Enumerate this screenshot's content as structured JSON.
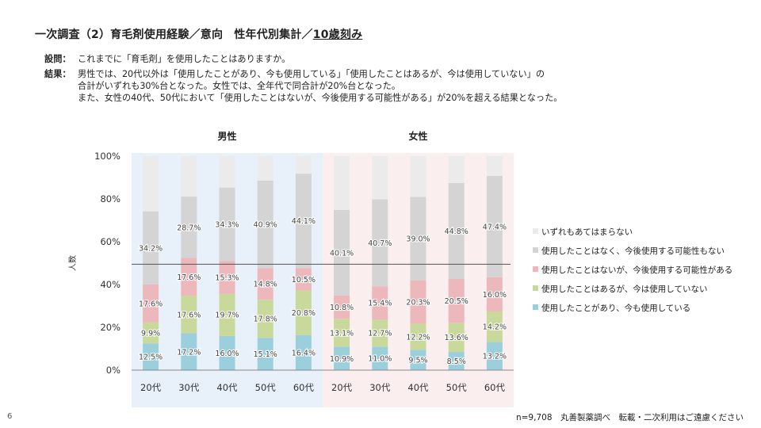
{
  "slide": {
    "title_main": "一次調査（2）育毛剤使用経験／意向　性年代別集計／",
    "title_underlined": "10歳刻み",
    "question_label": "設問：",
    "question_text": "これまでに「育毛剤」を使用したことはありますか。",
    "result_label": "結果：",
    "result_lines": [
      "男性では、20代以外は「使用したことがあり、今も使用している」「使用したことはあるが、今は使用していない」の",
      "合計がいずれも30%台となった。女性では、全年代で同合計が20%台となった。",
      "また、女性の40代、50代において「使用したことはないが、今後使用する可能性がある」が20%を超える結果となった。"
    ],
    "page_number": "6",
    "footer_note": "n=9,708　丸善製薬調べ　転載・二次利用はご遠慮ください"
  },
  "colors": {
    "male_bg": "#e8f1fa",
    "female_bg": "#fbeeee",
    "series": [
      "#9ccfdc",
      "#c9d99c",
      "#edb8bb",
      "#d4d4d4",
      "#ebebeb"
    ]
  },
  "chart_data": {
    "type": "bar",
    "stacked": true,
    "ylabel": "人数",
    "ylim": [
      0,
      100
    ],
    "yticks": [
      "0%",
      "20%",
      "40%",
      "60%",
      "80%",
      "100%"
    ],
    "groups": [
      {
        "name": "男性",
        "categories": [
          "20代",
          "30代",
          "40代",
          "50代",
          "60代"
        ]
      },
      {
        "name": "女性",
        "categories": [
          "20代",
          "30代",
          "40代",
          "50代",
          "60代"
        ]
      }
    ],
    "categories": [
      "20代",
      "30代",
      "40代",
      "50代",
      "60代",
      "20代",
      "30代",
      "40代",
      "50代",
      "60代"
    ],
    "reference_line": 49.5,
    "series": [
      {
        "name": "使用したことがあり、今も使用している",
        "values": [
          12.5,
          17.2,
          16.0,
          15.1,
          16.4,
          10.9,
          11.0,
          9.5,
          8.5,
          13.2
        ],
        "labels": [
          "12.5%",
          "17.2%",
          "16.0%",
          "15.1%",
          "16.4%",
          "10.9%",
          "11.0%",
          "9.5%",
          "8.5%",
          "13.2%"
        ]
      },
      {
        "name": "使用したことはあるが、今は使用していない",
        "values": [
          9.9,
          17.6,
          19.7,
          17.8,
          20.8,
          13.1,
          12.7,
          12.2,
          13.6,
          14.2
        ],
        "labels": [
          "9.9%",
          "17.6%",
          "19.7%",
          "17.8%",
          "20.8%",
          "13.1%",
          "12.7%",
          "12.2%",
          "13.6%",
          "14.2%"
        ]
      },
      {
        "name": "使用したことはないが、今後使用する可能性がある",
        "values": [
          17.6,
          17.6,
          15.3,
          14.8,
          10.5,
          10.8,
          15.4,
          20.3,
          20.5,
          16.0
        ],
        "labels": [
          "17.6%",
          "17.6%",
          "15.3%",
          "14.8%",
          "10.5%",
          "10.8%",
          "15.4%",
          "20.3%",
          "20.5%",
          "16.0%"
        ]
      },
      {
        "name": "使用したことはなく、今後使用する可能性もない",
        "values": [
          34.2,
          28.7,
          34.3,
          40.9,
          44.1,
          40.1,
          40.7,
          39.0,
          44.8,
          47.4
        ],
        "labels": [
          "34.2%",
          "28.7%",
          "34.3%",
          "40.9%",
          "44.1%",
          "40.1%",
          "40.7%",
          "39.0%",
          "44.8%",
          "47.4%"
        ]
      },
      {
        "name": "いずれもあてはまらない",
        "values": [
          25.8,
          18.9,
          14.7,
          11.4,
          8.2,
          25.1,
          20.2,
          19.0,
          12.6,
          9.2
        ],
        "labels": []
      }
    ],
    "legend_order": [
      4,
      3,
      2,
      1,
      0
    ]
  }
}
